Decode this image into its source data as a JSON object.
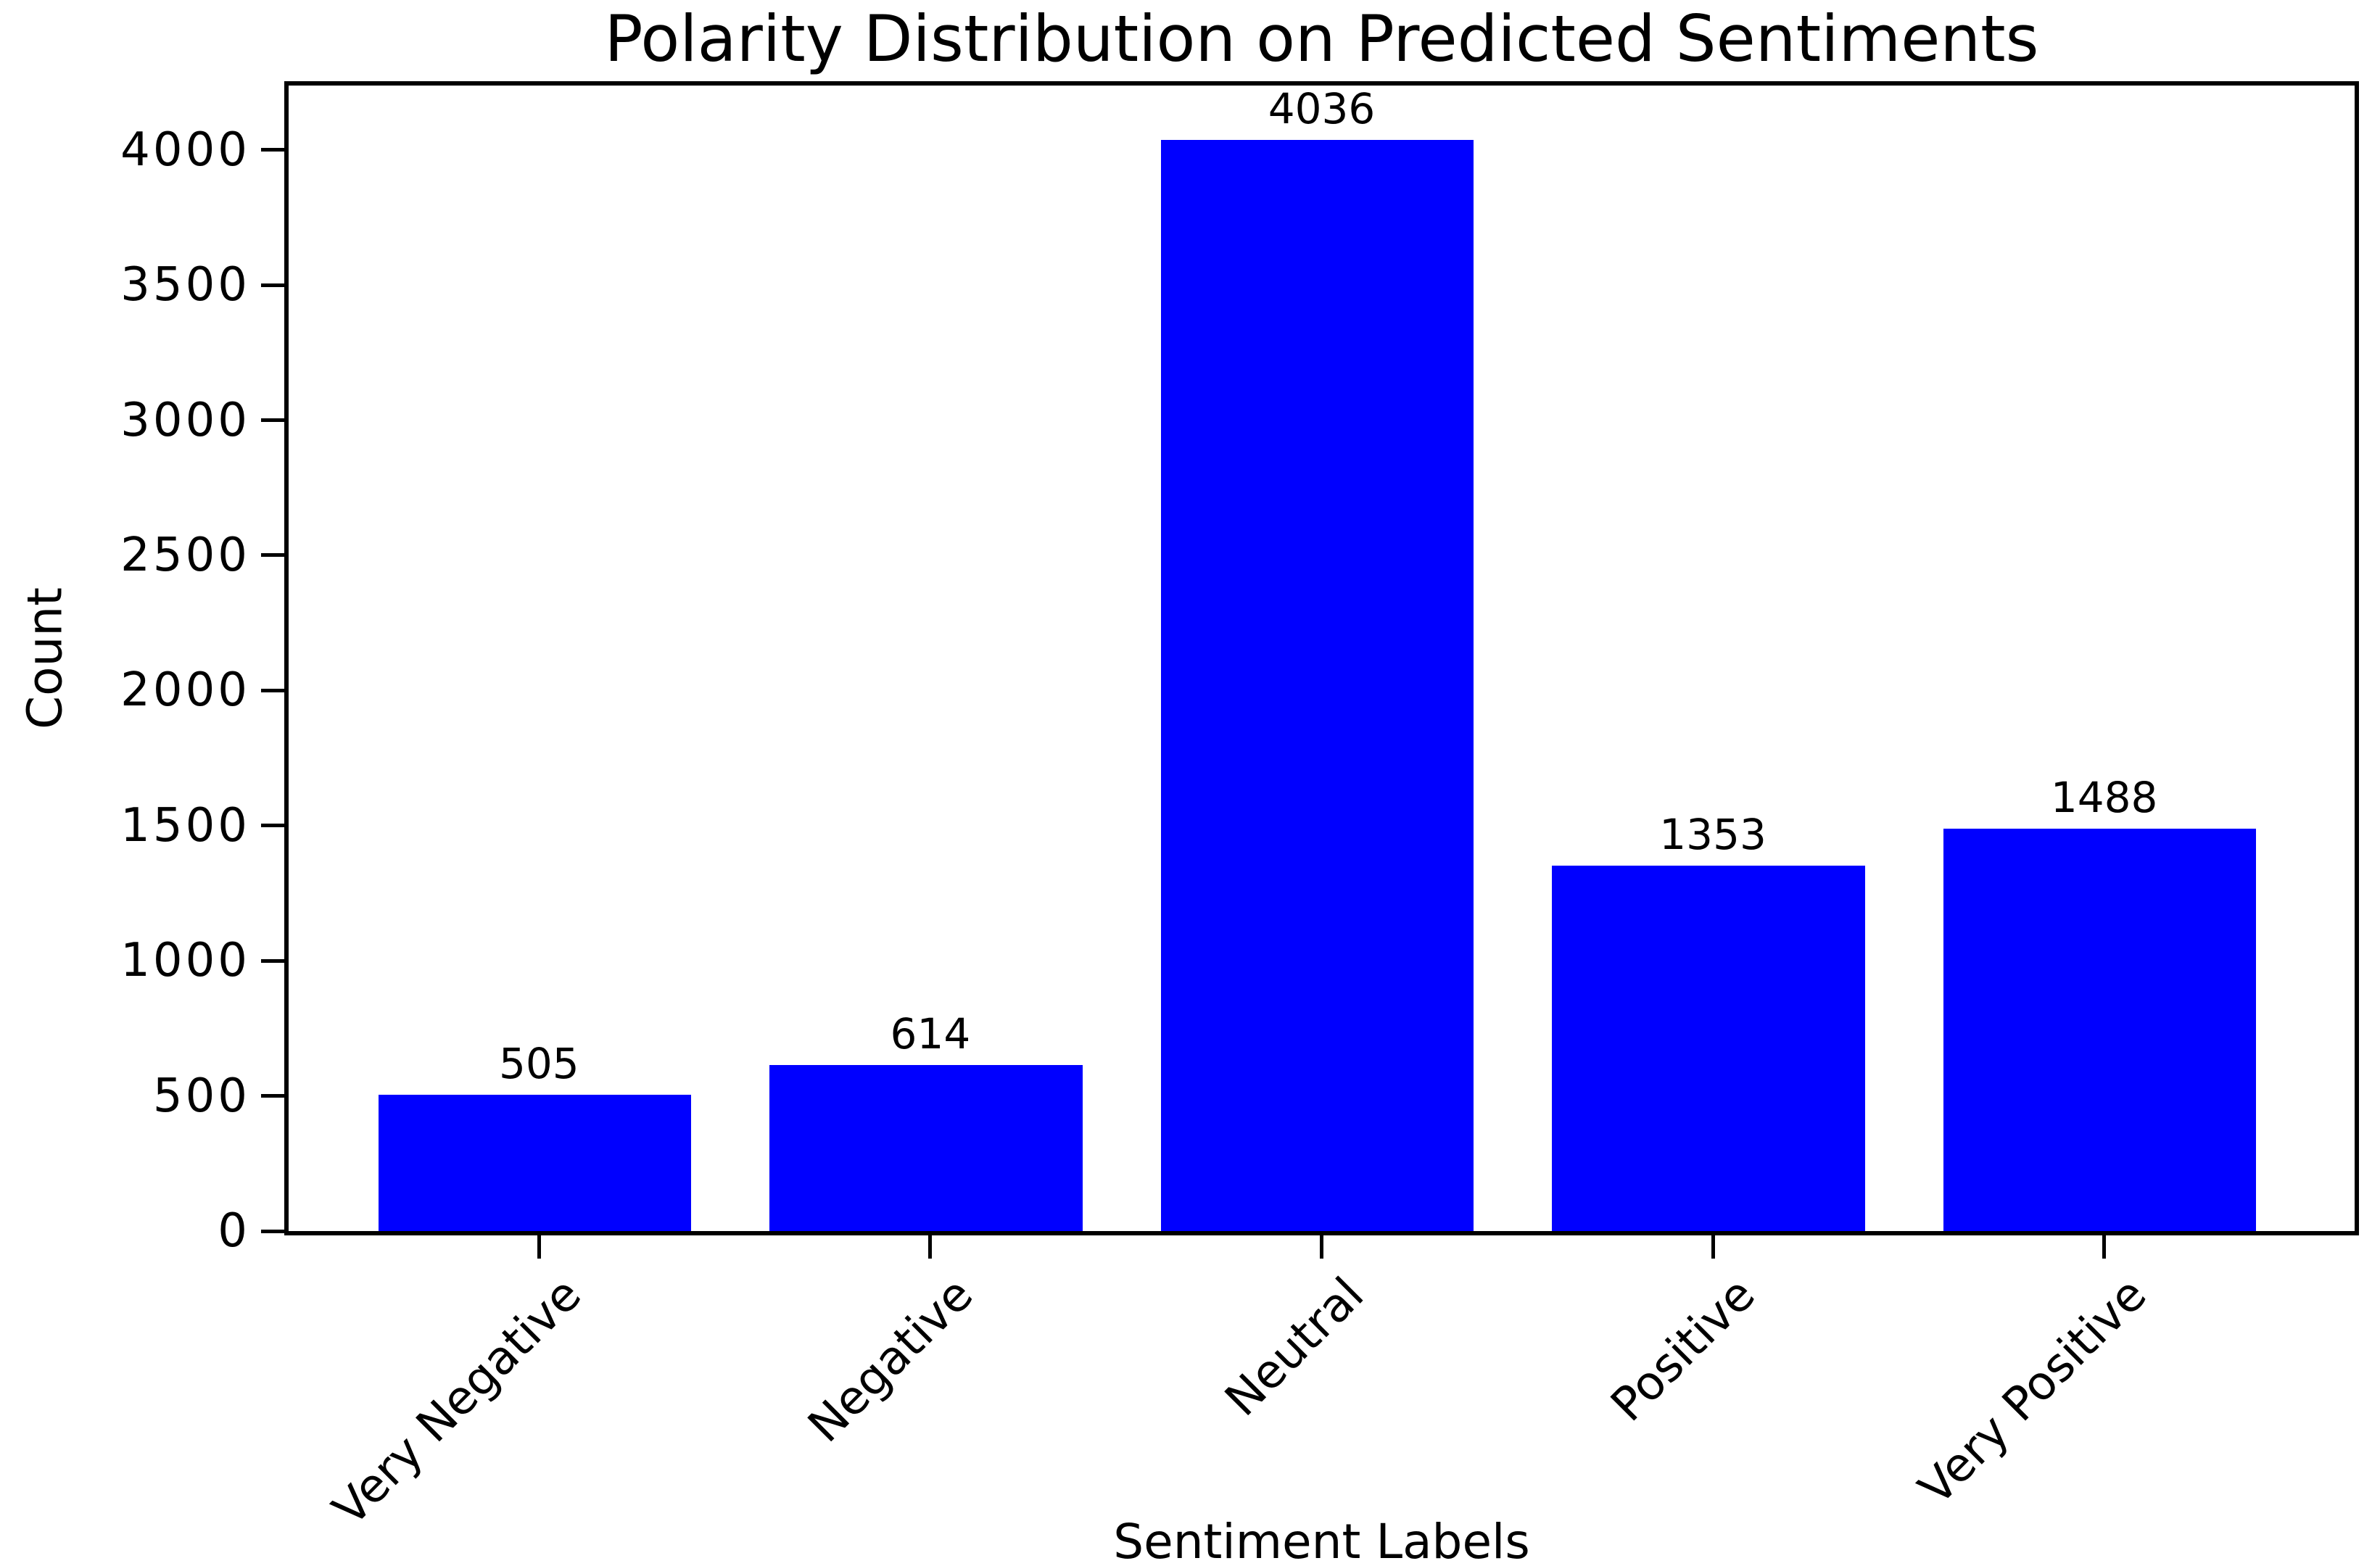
{
  "chart_data": {
    "type": "bar",
    "title": "Polarity Distribution on Predicted Sentiments",
    "xlabel": "Sentiment Labels",
    "ylabel": "Count",
    "categories": [
      "Very Negative",
      "Negative",
      "Neutral",
      "Positive",
      "Very Positive"
    ],
    "values": [
      505,
      614,
      4036,
      1353,
      1488
    ],
    "bar_value_labels": [
      "505",
      "614",
      "4036",
      "1353",
      "1488"
    ],
    "ytick_labels": [
      "0",
      "500",
      "1000",
      "1500",
      "2000",
      "2500",
      "3000",
      "3500",
      "4000"
    ],
    "ytick_values": [
      0,
      500,
      1000,
      1500,
      2000,
      2500,
      3000,
      3500,
      4000
    ],
    "ylim": [
      0,
      4238
    ],
    "bar_color": "#0000ff",
    "axis_color": "#000000",
    "background_color": "#ffffff",
    "grid": false,
    "legend_position": "none",
    "x_tick_rotation_deg": 45
  }
}
